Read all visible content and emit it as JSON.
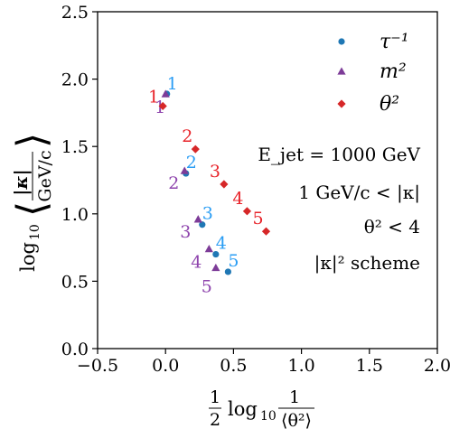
{
  "chart_data": {
    "type": "scatter",
    "xlim": [
      -0.5,
      2.0
    ],
    "ylim": [
      0.0,
      2.5
    ],
    "x_ticks": [
      "−0.5",
      "0.0",
      "0.5",
      "1.0",
      "1.5",
      "2.0"
    ],
    "y_ticks": [
      "0.0",
      "0.5",
      "1.0",
      "1.5",
      "2.0",
      "2.5"
    ],
    "x_tick_values": [
      -0.5,
      0.0,
      0.5,
      1.0,
      1.5,
      2.0
    ],
    "y_tick_values": [
      0.0,
      0.5,
      1.0,
      1.5,
      2.0,
      2.5
    ],
    "ylabel": "log10 ⟨|κ| / GeV/c⟩",
    "xlabel": "½ log10 1/⟨θ²⟩",
    "legend_position": "top-right",
    "series": [
      {
        "name": "τ⁻¹",
        "marker": "circle",
        "color": "#1f77b4",
        "label_color": "#2a9df4",
        "points": [
          {
            "x": 0.01,
            "y": 1.89,
            "label": "1"
          },
          {
            "x": 0.15,
            "y": 1.3,
            "label": "2"
          },
          {
            "x": 0.27,
            "y": 0.92,
            "label": "3"
          },
          {
            "x": 0.37,
            "y": 0.7,
            "label": "4"
          },
          {
            "x": 0.46,
            "y": 0.57,
            "label": "5"
          }
        ]
      },
      {
        "name": "m²",
        "marker": "triangle",
        "color": "#7d3c98",
        "label_color": "#8e44ad",
        "points": [
          {
            "x": 0.0,
            "y": 1.89,
            "label": "1"
          },
          {
            "x": 0.14,
            "y": 1.32,
            "label": "2"
          },
          {
            "x": 0.24,
            "y": 0.96,
            "label": "3"
          },
          {
            "x": 0.32,
            "y": 0.74,
            "label": "4"
          },
          {
            "x": 0.37,
            "y": 0.6,
            "label": "5"
          }
        ]
      },
      {
        "name": "θ²",
        "marker": "diamond",
        "color": "#d62728",
        "label_color": "#e8232a",
        "points": [
          {
            "x": -0.02,
            "y": 1.8,
            "label": "1"
          },
          {
            "x": 0.22,
            "y": 1.48,
            "label": "2"
          },
          {
            "x": 0.43,
            "y": 1.22,
            "label": "3"
          },
          {
            "x": 0.6,
            "y": 1.02,
            "label": "4"
          },
          {
            "x": 0.74,
            "y": 0.87,
            "label": "5"
          }
        ]
      }
    ],
    "annotations": [
      "E_jet = 1000 GeV",
      "1 GeV/c < |κ|",
      "θ² < 4",
      "|κ|² scheme"
    ]
  },
  "legend": [
    {
      "label": "τ⁻¹"
    },
    {
      "label": "m²"
    },
    {
      "label": "θ²"
    }
  ]
}
